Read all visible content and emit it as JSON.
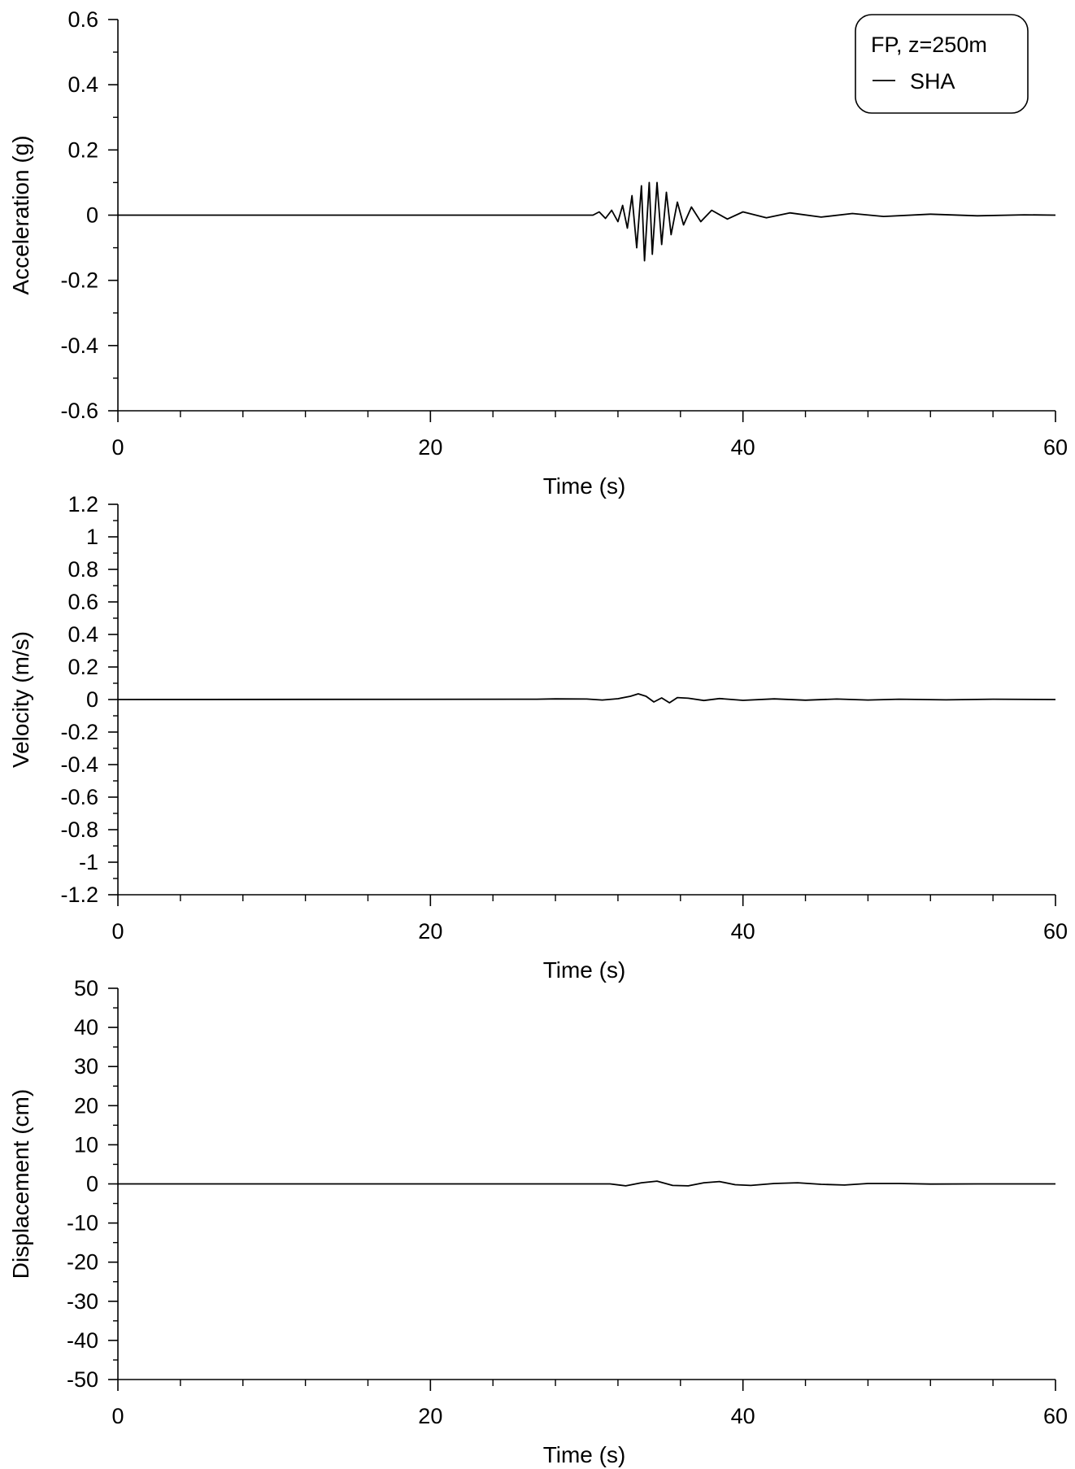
{
  "chart_data": [
    {
      "type": "line",
      "xlabel": "Time (s)",
      "ylabel": "Acceleration (g)",
      "xlim": [
        0,
        60
      ],
      "ylim": [
        -0.6,
        0.6
      ],
      "x_ticks": [
        0,
        20,
        40,
        60
      ],
      "y_ticks": [
        -0.6,
        -0.4,
        -0.2,
        0,
        0.2,
        0.4,
        0.6
      ],
      "grid": false,
      "legend": {
        "placement": "top-right",
        "title": "FP, z=250m",
        "entries": [
          "SHA"
        ]
      },
      "series": [
        {
          "name": "SHA",
          "color": "#000000",
          "x": [
            0,
            30.4,
            30.8,
            31.2,
            31.6,
            32.0,
            32.3,
            32.6,
            32.9,
            33.2,
            33.5,
            33.7,
            34.0,
            34.2,
            34.5,
            34.8,
            35.1,
            35.4,
            35.8,
            36.2,
            36.7,
            37.3,
            38.0,
            39.0,
            40.0,
            41.5,
            43.0,
            45.0,
            47.0,
            49.0,
            52.0,
            55.0,
            58.0,
            60.0
          ],
          "y": [
            0,
            0,
            0.01,
            -0.01,
            0.015,
            -0.02,
            0.03,
            -0.04,
            0.06,
            -0.1,
            0.09,
            -0.14,
            0.1,
            -0.12,
            0.1,
            -0.09,
            0.07,
            -0.06,
            0.04,
            -0.03,
            0.025,
            -0.02,
            0.015,
            -0.012,
            0.01,
            -0.008,
            0.007,
            -0.006,
            0.005,
            -0.004,
            0.003,
            -0.002,
            0.001,
            0
          ]
        }
      ]
    },
    {
      "type": "line",
      "xlabel": "Time (s)",
      "ylabel": "Velocity (m/s)",
      "xlim": [
        0,
        60
      ],
      "ylim": [
        -1.2,
        1.2
      ],
      "x_ticks": [
        0,
        20,
        40,
        60
      ],
      "y_ticks": [
        -1.2,
        -1,
        -0.8,
        -0.6,
        -0.4,
        -0.2,
        0,
        0.2,
        0.4,
        0.6,
        0.8,
        1,
        1.2
      ],
      "grid": false,
      "series": [
        {
          "name": "SHA",
          "color": "#000000",
          "x": [
            0,
            26.8,
            28.0,
            30.0,
            31.0,
            32.0,
            32.8,
            33.3,
            33.8,
            34.3,
            34.8,
            35.3,
            35.8,
            36.5,
            37.5,
            38.5,
            40.0,
            42.0,
            44.0,
            46.0,
            48.0,
            50.0,
            53.0,
            56.0,
            60.0
          ],
          "y": [
            0,
            0.002,
            0.004,
            0.003,
            -0.003,
            0.005,
            0.02,
            0.035,
            0.02,
            -0.015,
            0.01,
            -0.02,
            0.012,
            0.008,
            -0.006,
            0.006,
            -0.005,
            0.004,
            -0.004,
            0.003,
            -0.003,
            0.002,
            -0.002,
            0.002,
            0
          ]
        }
      ]
    },
    {
      "type": "line",
      "xlabel": "Time (s)",
      "ylabel": "Displacement (cm)",
      "xlim": [
        0,
        60
      ],
      "ylim": [
        -50,
        50
      ],
      "x_ticks": [
        0,
        20,
        40,
        60
      ],
      "y_ticks": [
        -50,
        -40,
        -30,
        -20,
        -10,
        0,
        10,
        20,
        30,
        40,
        50
      ],
      "grid": false,
      "series": [
        {
          "name": "SHA",
          "color": "#000000",
          "x": [
            0,
            31.5,
            32.5,
            33.5,
            34.5,
            35.5,
            36.5,
            37.5,
            38.5,
            39.5,
            40.5,
            42.0,
            43.5,
            45.0,
            46.5,
            48.0,
            50.0,
            52.0,
            55.0,
            60.0
          ],
          "y": [
            0,
            0,
            -0.5,
            0.3,
            0.7,
            -0.4,
            -0.5,
            0.3,
            0.6,
            -0.2,
            -0.4,
            0.1,
            0.3,
            -0.1,
            -0.3,
            0.1,
            0.1,
            -0.05,
            0,
            0
          ]
        }
      ]
    }
  ]
}
